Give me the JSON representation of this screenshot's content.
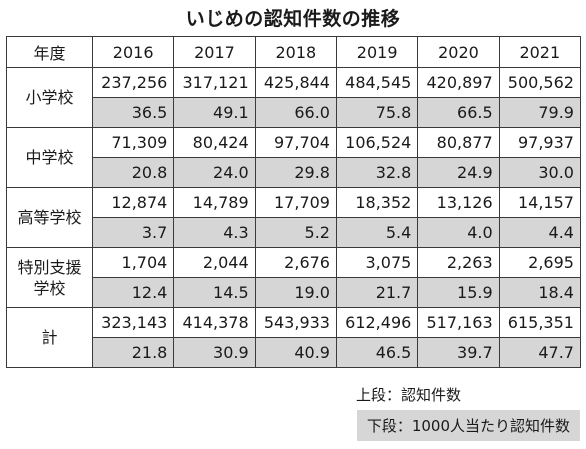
{
  "title": "いじめの認知件数の推移",
  "table": {
    "header_label": "年度",
    "years": [
      "2016",
      "2017",
      "2018",
      "2019",
      "2020",
      "2021"
    ],
    "rows": [
      {
        "label": "小学校",
        "counts": [
          "237,256",
          "317,121",
          "425,844",
          "484,545",
          "420,897",
          "500,562"
        ],
        "rates": [
          "36.5",
          "49.1",
          "66.0",
          "75.8",
          "66.5",
          "79.9"
        ]
      },
      {
        "label": "中学校",
        "counts": [
          "71,309",
          "80,424",
          "97,704",
          "106,524",
          "80,877",
          "97,937"
        ],
        "rates": [
          "20.8",
          "24.0",
          "29.8",
          "32.8",
          "24.9",
          "30.0"
        ]
      },
      {
        "label": "高等学校",
        "counts": [
          "12,874",
          "14,789",
          "17,709",
          "18,352",
          "13,126",
          "14,157"
        ],
        "rates": [
          "3.7",
          "4.3",
          "5.2",
          "5.4",
          "4.0",
          "4.4"
        ]
      },
      {
        "label": "特別支援学校",
        "counts": [
          "1,704",
          "2,044",
          "2,676",
          "3,075",
          "2,263",
          "2,695"
        ],
        "rates": [
          "12.4",
          "14.5",
          "19.0",
          "21.7",
          "15.9",
          "18.4"
        ]
      },
      {
        "label": "計",
        "counts": [
          "323,143",
          "414,378",
          "543,933",
          "612,496",
          "517,163",
          "615,351"
        ],
        "rates": [
          "21.8",
          "30.9",
          "40.9",
          "46.5",
          "39.7",
          "47.7"
        ]
      }
    ]
  },
  "legend": {
    "upper": "上段：認知件数",
    "lower": "下段：1000人当たり認知件数"
  },
  "colors": {
    "rate_background": "#d6d6d6",
    "border": "#3a3a3a"
  }
}
